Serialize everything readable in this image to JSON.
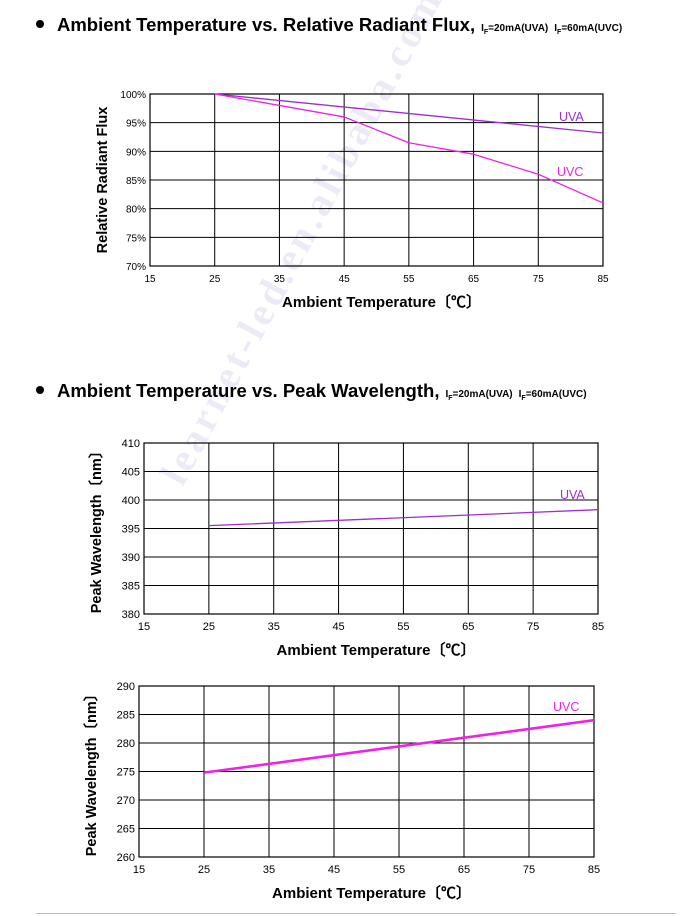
{
  "headings": [
    {
      "title": "Ambient Temperature vs. Relative Radiant Flux",
      "condition_uva_prefix": "I",
      "condition_uva_sub": "F",
      "condition_uva_value": "=20mA(UVA)",
      "condition_uvc_prefix": "I",
      "condition_uvc_sub": "F",
      "condition_uvc_value": "=60mA(UVC)"
    },
    {
      "title": "Ambient Temperature vs. Peak Wavelength",
      "condition_uva_prefix": "I",
      "condition_uva_sub": "F",
      "condition_uva_value": "=20mA(UVA)",
      "condition_uvc_prefix": "I",
      "condition_uvc_sub": "F",
      "condition_uvc_value": "=60mA(UVC)"
    }
  ],
  "watermark": "learnet-led.en.alibaba.com",
  "colors": {
    "uva": "#9b2fd0",
    "uvc": "#ee22e6",
    "grid": "#000000"
  },
  "chart_data": [
    {
      "type": "line",
      "xlabel": "Ambient Temperature〔℃〕",
      "ylabel": "Relative Radiant Flux",
      "x_ticks": [
        15,
        25,
        35,
        45,
        55,
        65,
        75,
        85
      ],
      "y_ticks": [
        70,
        75,
        80,
        85,
        90,
        95,
        100
      ],
      "y_tick_labels": [
        "70%",
        "75%",
        "80%",
        "85%",
        "90%",
        "95%",
        "100%"
      ],
      "xlim": [
        15,
        85
      ],
      "ylim": [
        70,
        100
      ],
      "grid": true,
      "series": [
        {
          "name": "UVA",
          "color_key": "uva",
          "x": [
            25,
            85
          ],
          "y": [
            100,
            93.2
          ]
        },
        {
          "name": "UVC",
          "color_key": "uvc",
          "x": [
            25,
            45,
            55,
            65,
            75,
            85
          ],
          "y": [
            100,
            96,
            91.5,
            89.5,
            86,
            81
          ]
        }
      ]
    },
    {
      "type": "line",
      "xlabel": "Ambient Temperature〔℃〕",
      "ylabel": "Peak Wavelength〔nm〕",
      "x_ticks": [
        15,
        25,
        35,
        45,
        55,
        65,
        75,
        85
      ],
      "y_ticks": [
        380,
        385,
        390,
        395,
        400,
        405,
        410
      ],
      "y_tick_labels": [
        "380",
        "385",
        "390",
        "395",
        "400",
        "405",
        "410"
      ],
      "xlim": [
        15,
        85
      ],
      "ylim": [
        380,
        410
      ],
      "grid": true,
      "series": [
        {
          "name": "UVA",
          "color_key": "uva",
          "x": [
            25,
            85
          ],
          "y": [
            395.5,
            398.3
          ]
        }
      ]
    },
    {
      "type": "line",
      "xlabel": "Ambient Temperature〔℃〕",
      "ylabel": "Peak Wavelength〔nm〕",
      "x_ticks": [
        15,
        25,
        35,
        45,
        55,
        65,
        75,
        85
      ],
      "y_ticks": [
        260,
        265,
        270,
        275,
        280,
        285,
        290
      ],
      "y_tick_labels": [
        "260",
        "265",
        "270",
        "275",
        "280",
        "285",
        "290"
      ],
      "xlim": [
        15,
        85
      ],
      "ylim": [
        260,
        290
      ],
      "grid": true,
      "series": [
        {
          "name": "UVC",
          "color_key": "uvc",
          "x": [
            25,
            85
          ],
          "y": [
            274.8,
            284
          ]
        }
      ]
    }
  ]
}
